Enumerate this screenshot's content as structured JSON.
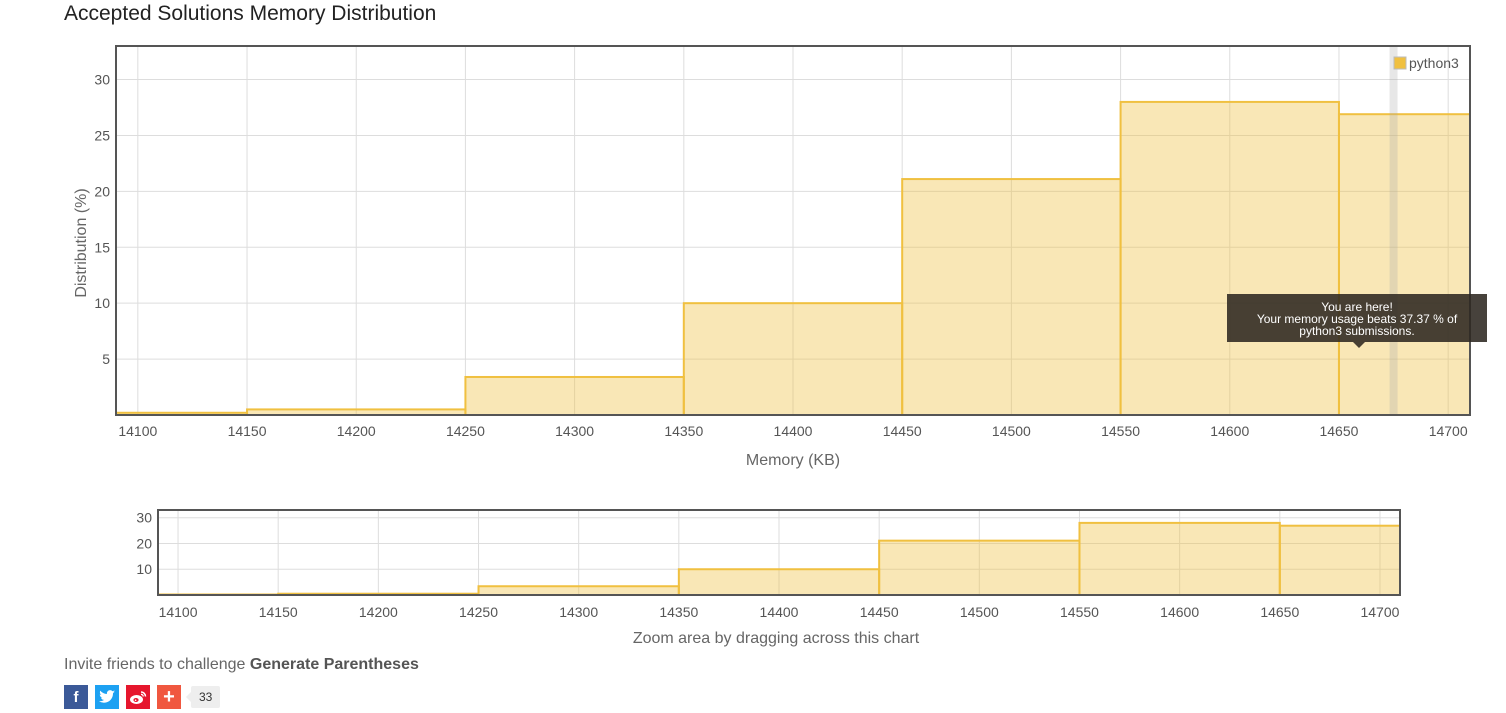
{
  "page": {
    "title": "Accepted Solutions Memory Distribution",
    "invite_prefix": "Invite friends to challenge ",
    "problem_name": "Generate Parentheses",
    "share_count": "33",
    "share_icons": [
      "facebook-icon",
      "twitter-icon",
      "weibo-icon",
      "plus-icon"
    ]
  },
  "tooltip": {
    "line1": "You are here!",
    "line2": "Your memory usage beats 37.37 % of",
    "line3": "python3 submissions."
  },
  "navigator": {
    "caption": "Zoom area by dragging across this chart",
    "y_ticks": [
      10,
      20,
      30
    ]
  },
  "chart_data": {
    "type": "bar",
    "xlabel": "Memory (KB)",
    "ylabel": "Distribution (%)",
    "xlim": [
      14090,
      14710
    ],
    "ylim": [
      0,
      33
    ],
    "x_ticks": [
      14100,
      14150,
      14200,
      14250,
      14300,
      14350,
      14400,
      14450,
      14500,
      14550,
      14600,
      14650,
      14700
    ],
    "y_ticks": [
      5,
      10,
      15,
      20,
      25,
      30
    ],
    "grid": true,
    "legend_position": "top-right",
    "series": [
      {
        "name": "python3",
        "color": "#f0c040",
        "bins": [
          {
            "x0": 14090,
            "x1": 14150,
            "value": 0.2
          },
          {
            "x0": 14150,
            "x1": 14250,
            "value": 0.5
          },
          {
            "x0": 14250,
            "x1": 14350,
            "value": 3.4
          },
          {
            "x0": 14350,
            "x1": 14450,
            "value": 10
          },
          {
            "x0": 14450,
            "x1": 14550,
            "value": 21.1
          },
          {
            "x0": 14550,
            "x1": 14650,
            "value": 28
          },
          {
            "x0": 14650,
            "x1": 14710,
            "value": 26.9
          }
        ]
      }
    ],
    "marker_x": 14675
  }
}
